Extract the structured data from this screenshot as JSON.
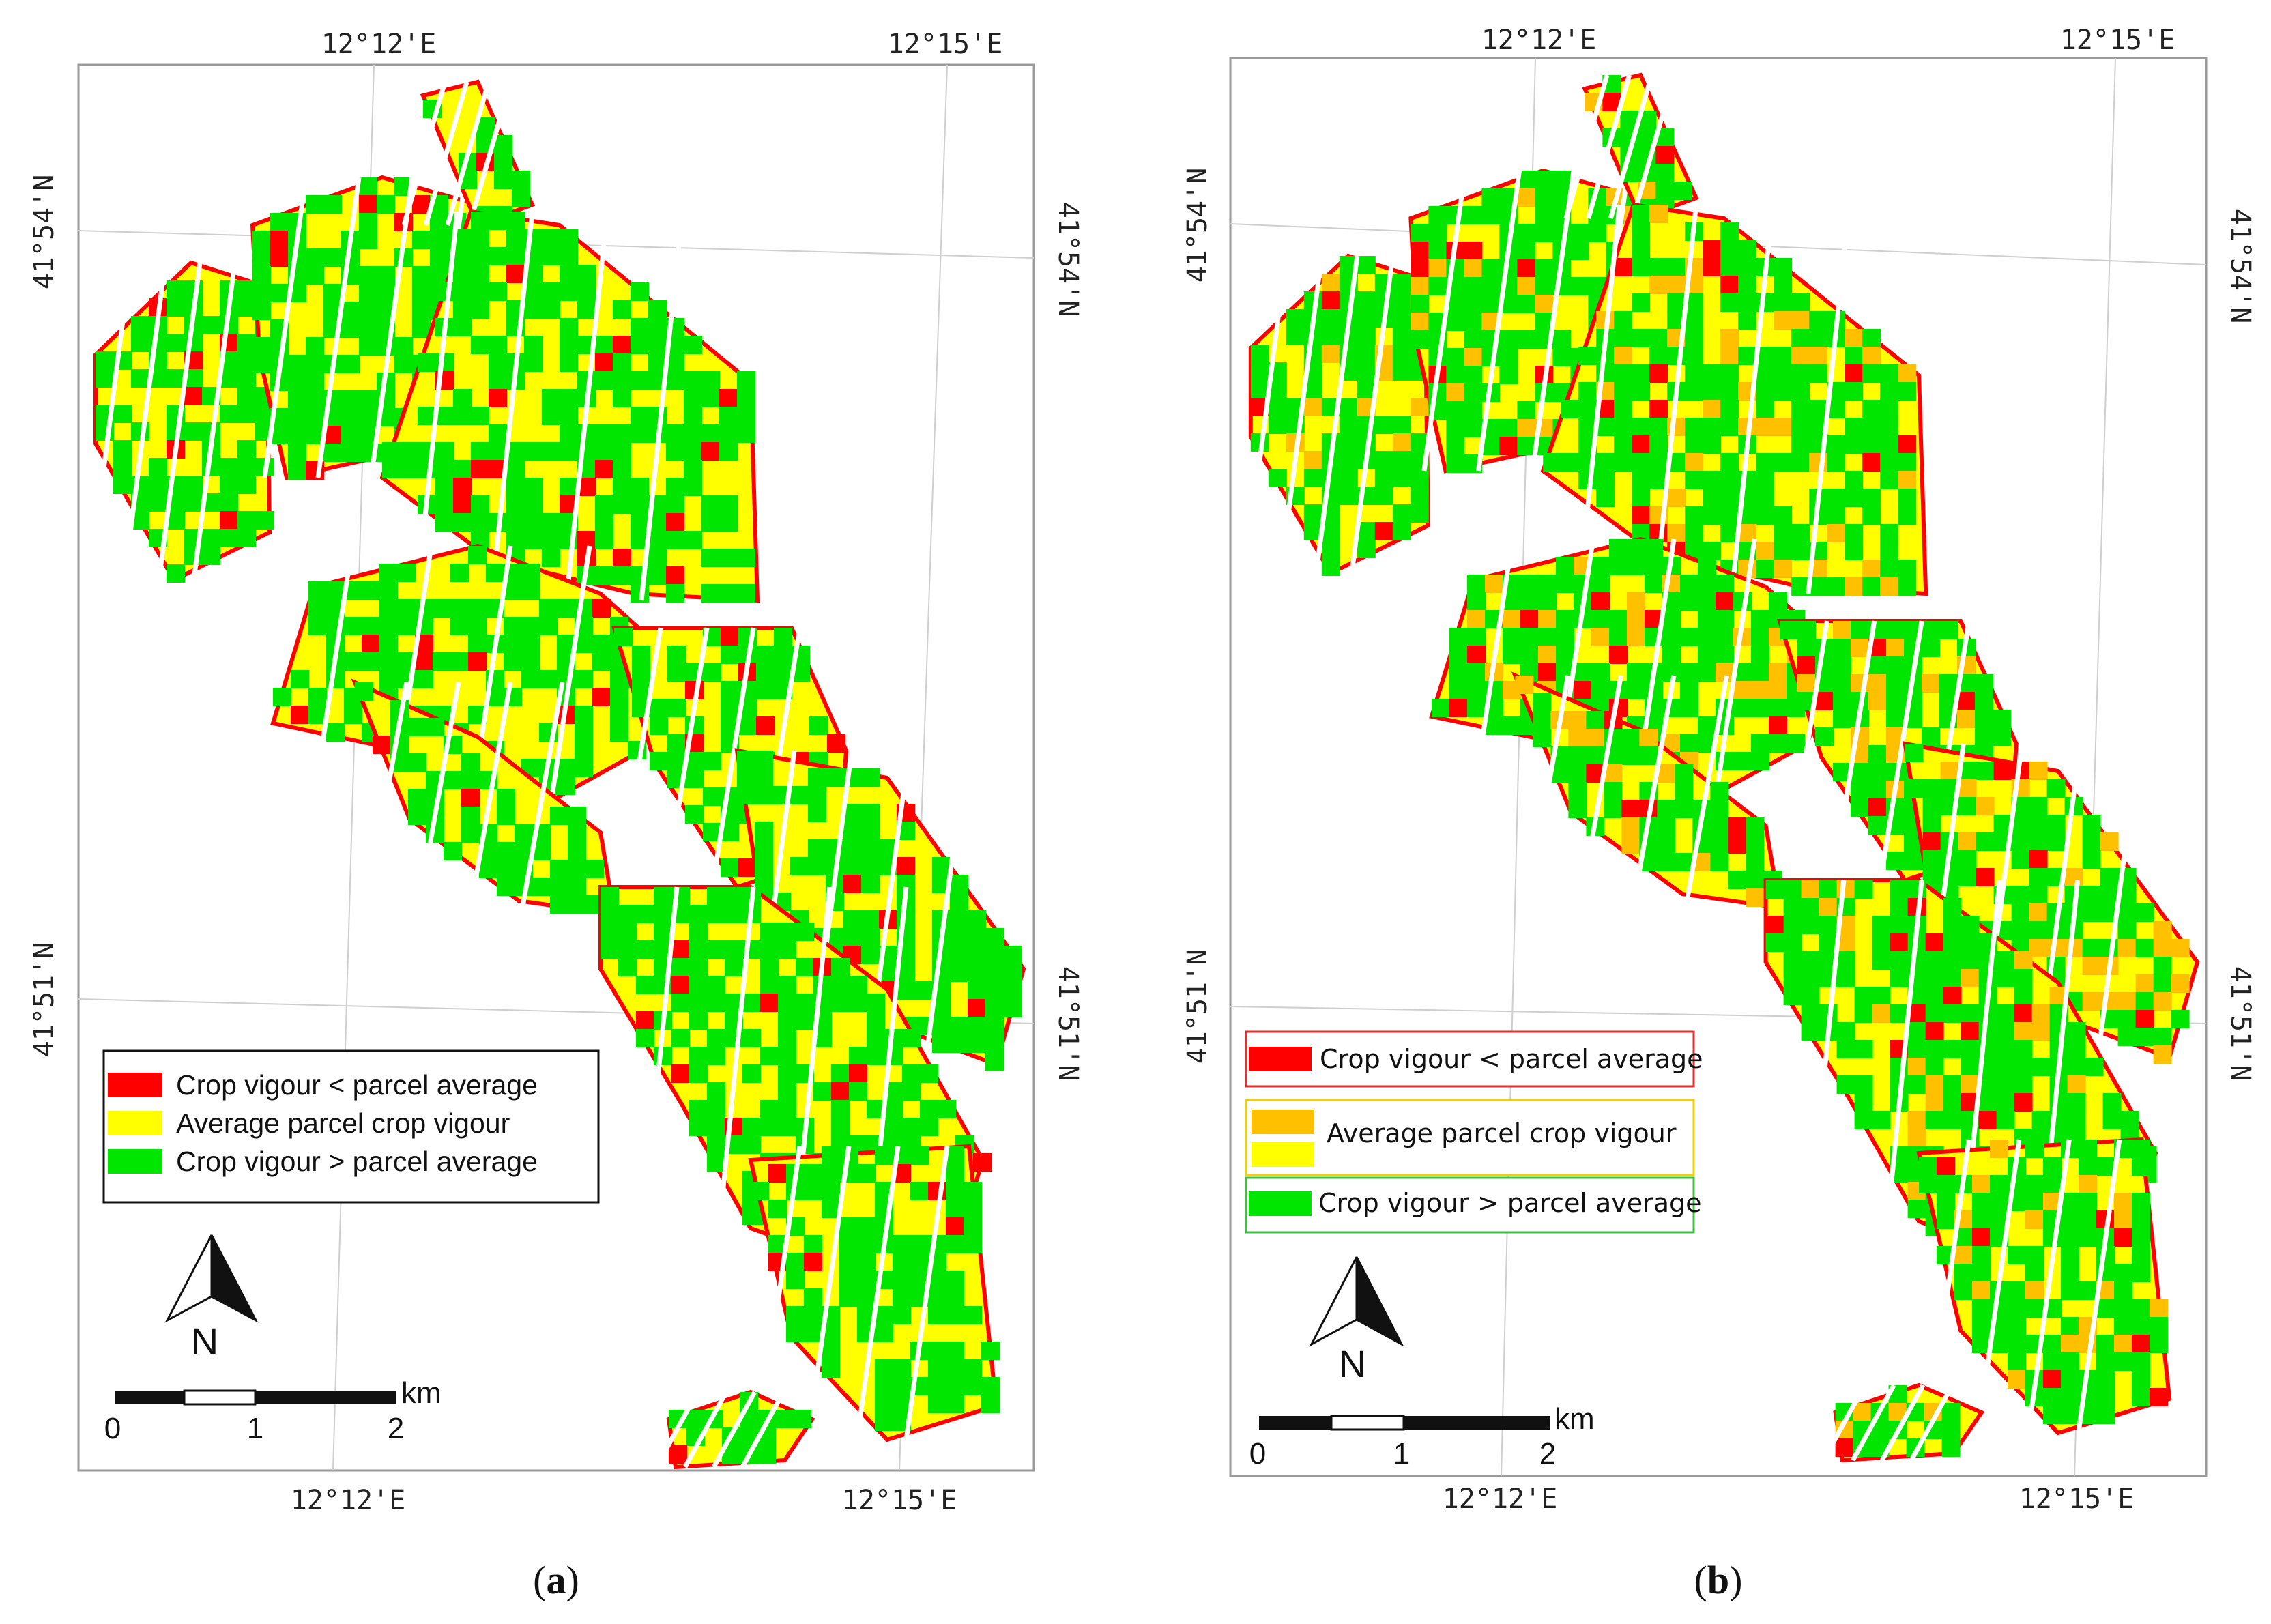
{
  "figure": {
    "panels": [
      {
        "id": "a",
        "caption_letter": "a",
        "coord_labels": {
          "top_left": "12°12'E",
          "top_right": "12°15'E",
          "bottom_left": "12°12'E",
          "bottom_right": "12°15'E",
          "left_upper": "41°54'N",
          "left_lower": "41°51'N",
          "right_upper": "41°54'N",
          "right_lower": "41°51'N"
        },
        "legend": [
          {
            "label": "Crop vigour < parcel average",
            "color": "#ff0000"
          },
          {
            "label": "Average parcel crop vigour",
            "color": "#ffff00"
          },
          {
            "label": "Crop vigour > parcel average",
            "color": "#00e600"
          }
        ],
        "scale_bar": {
          "unit": "km",
          "ticks": [
            "0",
            "1",
            "2"
          ]
        },
        "north_label": "N"
      },
      {
        "id": "b",
        "caption_letter": "b",
        "coord_labels": {
          "top_left": "12°12'E",
          "top_right": "12°15'E",
          "bottom_left": "12°12'E",
          "bottom_right": "12°15'E",
          "left_upper": "41°54'N",
          "left_lower": "41°51'N",
          "right_upper": "41°54'N",
          "right_lower": "41°51'N"
        },
        "legend": [
          {
            "label": "Crop vigour < parcel average",
            "color": "#ff0000",
            "border": "#e03030"
          },
          {
            "label": "Average parcel crop vigour",
            "color": "#ffc000",
            "color2": "#ffff00",
            "border": "#f0d000"
          },
          {
            "label": "Crop vigour > parcel average",
            "color": "#00e600",
            "border": "#40c040"
          }
        ],
        "scale_bar": {
          "unit": "km",
          "ticks": [
            "0",
            "1",
            "2"
          ]
        },
        "north_label": "N"
      }
    ],
    "colors": {
      "low": "#ff0000",
      "average": "#ffff00",
      "average_alt": "#ffc000",
      "high": "#00e600",
      "frame": "#9a9a9a",
      "grid": "#cfcfcf"
    }
  }
}
